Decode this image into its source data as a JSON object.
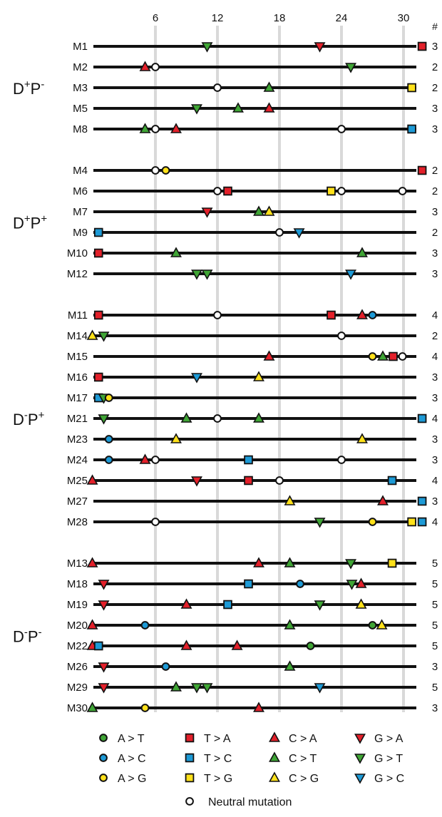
{
  "chart_data": {
    "type": "scatter",
    "x_ticks": [
      "6",
      "12",
      "18",
      "24",
      "30"
    ],
    "xlim": [
      0,
      31.5
    ],
    "grid": true,
    "count_header": "#",
    "groups": [
      {
        "label_main": "D",
        "label_sup1": "+",
        "label_mid": "P",
        "label_sup2": "-",
        "rows": [
          {
            "name": "M1",
            "count": "3",
            "mutations": [
              {
                "x": 11,
                "t": "GT"
              },
              {
                "x": 21.9,
                "t": "GA"
              },
              {
                "x": 31.8,
                "t": "TA"
              }
            ]
          },
          {
            "name": "M2",
            "count": "2",
            "mutations": [
              {
                "x": 5,
                "t": "CA"
              },
              {
                "x": 6,
                "t": "N"
              },
              {
                "x": 24.9,
                "t": "GT"
              }
            ]
          },
          {
            "name": "M3",
            "count": "2",
            "mutations": [
              {
                "x": 12,
                "t": "N"
              },
              {
                "x": 17,
                "t": "CT"
              },
              {
                "x": 30.8,
                "t": "TG"
              }
            ]
          },
          {
            "name": "M5",
            "count": "3",
            "mutations": [
              {
                "x": 10,
                "t": "GT"
              },
              {
                "x": 14,
                "t": "CT"
              },
              {
                "x": 17,
                "t": "CA"
              }
            ]
          },
          {
            "name": "M8",
            "count": "3",
            "mutations": [
              {
                "x": 5,
                "t": "CT"
              },
              {
                "x": 6,
                "t": "N"
              },
              {
                "x": 8,
                "t": "CA"
              },
              {
                "x": 24,
                "t": "N"
              },
              {
                "x": 30.8,
                "t": "TC"
              }
            ]
          }
        ]
      },
      {
        "label_main": "D",
        "label_sup1": "+",
        "label_mid": "P",
        "label_sup2": "+",
        "rows": [
          {
            "name": "M4",
            "count": "2",
            "mutations": [
              {
                "x": 6,
                "t": "N"
              },
              {
                "x": 7,
                "t": "AG"
              },
              {
                "x": 31.8,
                "t": "TA"
              }
            ]
          },
          {
            "name": "M6",
            "count": "2",
            "mutations": [
              {
                "x": 12,
                "t": "N"
              },
              {
                "x": 13,
                "t": "TA"
              },
              {
                "x": 23,
                "t": "TG"
              },
              {
                "x": 24,
                "t": "N"
              },
              {
                "x": 29.9,
                "t": "N"
              }
            ]
          },
          {
            "name": "M7",
            "count": "3",
            "mutations": [
              {
                "x": 11,
                "t": "GA"
              },
              {
                "x": 16,
                "t": "CT"
              },
              {
                "x": 17,
                "t": "CG"
              }
            ]
          },
          {
            "name": "M9",
            "count": "2",
            "mutations": [
              {
                "x": 0.5,
                "t": "TC"
              },
              {
                "x": 18,
                "t": "N"
              },
              {
                "x": 19.9,
                "t": "GC"
              }
            ]
          },
          {
            "name": "M10",
            "count": "3",
            "mutations": [
              {
                "x": 0.5,
                "t": "TA"
              },
              {
                "x": 8,
                "t": "CT"
              },
              {
                "x": 26,
                "t": "CT"
              }
            ]
          },
          {
            "name": "M12",
            "count": "3",
            "mutations": [
              {
                "x": 10,
                "t": "GT"
              },
              {
                "x": 11,
                "t": "GT"
              },
              {
                "x": 24.9,
                "t": "GC"
              }
            ]
          }
        ]
      },
      {
        "label_main": "D",
        "label_sup1": "-",
        "label_mid": "P",
        "label_sup2": "+",
        "rows": [
          {
            "name": "M11",
            "count": "4",
            "mutations": [
              {
                "x": 0.5,
                "t": "TA"
              },
              {
                "x": 12,
                "t": "N"
              },
              {
                "x": 23,
                "t": "TA"
              },
              {
                "x": 26,
                "t": "CA"
              },
              {
                "x": 27,
                "t": "AC"
              }
            ]
          },
          {
            "name": "M14",
            "count": "2",
            "mutations": [
              {
                "x": -0.1,
                "t": "CG"
              },
              {
                "x": 1,
                "t": "GT"
              },
              {
                "x": 24,
                "t": "N"
              }
            ]
          },
          {
            "name": "M15",
            "count": "4",
            "mutations": [
              {
                "x": 17,
                "t": "CA"
              },
              {
                "x": 27,
                "t": "AG"
              },
              {
                "x": 28,
                "t": "CT"
              },
              {
                "x": 29,
                "t": "TA"
              },
              {
                "x": 29.9,
                "t": "N"
              }
            ]
          },
          {
            "name": "M16",
            "count": "3",
            "mutations": [
              {
                "x": 0.5,
                "t": "TA"
              },
              {
                "x": 10,
                "t": "GC"
              },
              {
                "x": 16,
                "t": "CG"
              }
            ]
          },
          {
            "name": "M17",
            "count": "3",
            "mutations": [
              {
                "x": 0.5,
                "t": "TC"
              },
              {
                "x": 1,
                "t": "GT"
              },
              {
                "x": 1.5,
                "t": "AG"
              }
            ]
          },
          {
            "name": "M21",
            "count": "4",
            "mutations": [
              {
                "x": 1,
                "t": "GT"
              },
              {
                "x": 9,
                "t": "CT"
              },
              {
                "x": 12,
                "t": "N"
              },
              {
                "x": 16,
                "t": "CT"
              },
              {
                "x": 31.8,
                "t": "TC"
              }
            ]
          },
          {
            "name": "M23",
            "count": "3",
            "mutations": [
              {
                "x": 1.5,
                "t": "AC"
              },
              {
                "x": 8,
                "t": "CG"
              },
              {
                "x": 26,
                "t": "CG"
              }
            ]
          },
          {
            "name": "M24",
            "count": "3",
            "mutations": [
              {
                "x": 1.5,
                "t": "AC"
              },
              {
                "x": 5,
                "t": "CA"
              },
              {
                "x": 6,
                "t": "N"
              },
              {
                "x": 15,
                "t": "TC"
              },
              {
                "x": 24,
                "t": "N"
              }
            ]
          },
          {
            "name": "M25",
            "count": "4",
            "mutations": [
              {
                "x": -0.1,
                "t": "CA"
              },
              {
                "x": 10,
                "t": "GA"
              },
              {
                "x": 15,
                "t": "TA"
              },
              {
                "x": 18,
                "t": "N"
              },
              {
                "x": 28.9,
                "t": "TC"
              }
            ]
          },
          {
            "name": "M27",
            "count": "3",
            "mutations": [
              {
                "x": 19,
                "t": "CG"
              },
              {
                "x": 28,
                "t": "CA"
              },
              {
                "x": 31.8,
                "t": "TC"
              }
            ]
          },
          {
            "name": "M28",
            "count": "4",
            "mutations": [
              {
                "x": 6,
                "t": "N"
              },
              {
                "x": 21.9,
                "t": "GT"
              },
              {
                "x": 27,
                "t": "AG"
              },
              {
                "x": 30.8,
                "t": "TG"
              },
              {
                "x": 31.8,
                "t": "TC"
              }
            ]
          }
        ]
      },
      {
        "label_main": "D",
        "label_sup1": "-",
        "label_mid": "P",
        "label_sup2": "-",
        "rows": [
          {
            "name": "M13",
            "count": "5",
            "mutations": [
              {
                "x": -0.1,
                "t": "CA"
              },
              {
                "x": 16,
                "t": "CA"
              },
              {
                "x": 19,
                "t": "CT"
              },
              {
                "x": 24.9,
                "t": "GT"
              },
              {
                "x": 28.9,
                "t": "TG"
              }
            ]
          },
          {
            "name": "M18",
            "count": "5",
            "mutations": [
              {
                "x": 1,
                "t": "GA"
              },
              {
                "x": 15,
                "t": "TC"
              },
              {
                "x": 20,
                "t": "AC"
              },
              {
                "x": 25,
                "t": "GT"
              },
              {
                "x": 25.9,
                "t": "CA"
              }
            ]
          },
          {
            "name": "M19",
            "count": "5",
            "mutations": [
              {
                "x": 1,
                "t": "GA"
              },
              {
                "x": 9,
                "t": "CA"
              },
              {
                "x": 13,
                "t": "TC"
              },
              {
                "x": 21.9,
                "t": "GT"
              },
              {
                "x": 25.9,
                "t": "CG"
              }
            ]
          },
          {
            "name": "M20",
            "count": "5",
            "mutations": [
              {
                "x": -0.1,
                "t": "CA"
              },
              {
                "x": 5,
                "t": "AC"
              },
              {
                "x": 19,
                "t": "CT"
              },
              {
                "x": 27,
                "t": "AT"
              },
              {
                "x": 27.9,
                "t": "CG"
              }
            ]
          },
          {
            "name": "M22",
            "count": "5",
            "mutations": [
              {
                "x": -0.1,
                "t": "CA"
              },
              {
                "x": 0.5,
                "t": "TC"
              },
              {
                "x": 9,
                "t": "CA"
              },
              {
                "x": 13.9,
                "t": "CA"
              },
              {
                "x": 21,
                "t": "AT"
              }
            ]
          },
          {
            "name": "M26",
            "count": "3",
            "mutations": [
              {
                "x": 1,
                "t": "GA"
              },
              {
                "x": 7,
                "t": "AC"
              },
              {
                "x": 19,
                "t": "CT"
              }
            ]
          },
          {
            "name": "M29",
            "count": "5",
            "mutations": [
              {
                "x": 1,
                "t": "GA"
              },
              {
                "x": 8,
                "t": "CT"
              },
              {
                "x": 10,
                "t": "GT"
              },
              {
                "x": 11,
                "t": "GT"
              },
              {
                "x": 21.9,
                "t": "GC"
              }
            ]
          },
          {
            "name": "M30",
            "count": "3",
            "mutations": [
              {
                "x": -0.1,
                "t": "CT"
              },
              {
                "x": 5,
                "t": "AG"
              },
              {
                "x": 16,
                "t": "CA"
              }
            ]
          }
        ]
      }
    ],
    "marker_styles": {
      "AT": {
        "shape": "circle",
        "color": "#3fa535"
      },
      "AC": {
        "shape": "circle",
        "color": "#1d9ad6"
      },
      "AG": {
        "shape": "circle",
        "color": "#ffe11a"
      },
      "TA": {
        "shape": "square",
        "color": "#e3202a"
      },
      "TC": {
        "shape": "square",
        "color": "#1d9ad6"
      },
      "TG": {
        "shape": "square",
        "color": "#ffe11a"
      },
      "CA": {
        "shape": "triangle-up",
        "color": "#e3202a"
      },
      "CT": {
        "shape": "triangle-up",
        "color": "#3fa535"
      },
      "CG": {
        "shape": "triangle-up",
        "color": "#ffe11a"
      },
      "GA": {
        "shape": "triangle-down",
        "color": "#e3202a"
      },
      "GT": {
        "shape": "triangle-down",
        "color": "#3fa535"
      },
      "GC": {
        "shape": "triangle-down",
        "color": "#1d9ad6"
      },
      "N": {
        "shape": "circle",
        "color": "#ffffff"
      }
    },
    "legend": [
      {
        "t": "AT",
        "label": "A > T"
      },
      {
        "t": "TA",
        "label": "T > A"
      },
      {
        "t": "CA",
        "label": "C > A"
      },
      {
        "t": "GA",
        "label": "G > A"
      },
      {
        "t": "AC",
        "label": "A > C"
      },
      {
        "t": "TC",
        "label": "T > C"
      },
      {
        "t": "CT",
        "label": "C > T"
      },
      {
        "t": "GT",
        "label": "G > T"
      },
      {
        "t": "AG",
        "label": "A > G"
      },
      {
        "t": "TG",
        "label": "T > G"
      },
      {
        "t": "CG",
        "label": "C > G"
      },
      {
        "t": "GC",
        "label": "G > C"
      }
    ],
    "legend_neutral": {
      "t": "N",
      "label": "Neutral mutation"
    },
    "colors": {
      "line": "#111111",
      "grid": "#d9d9d9",
      "outline": "#111111"
    }
  }
}
